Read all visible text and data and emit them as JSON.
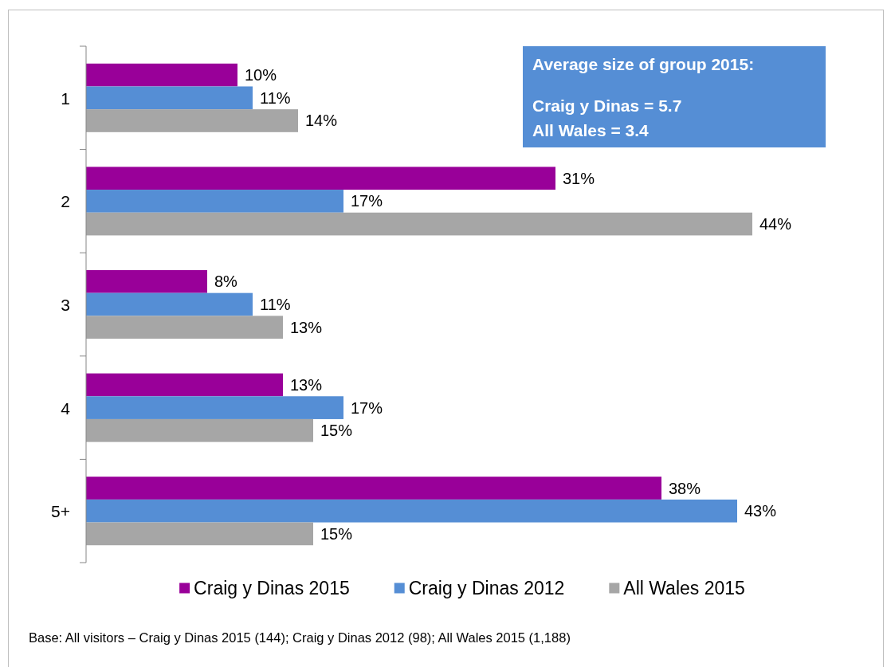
{
  "chart_data": {
    "type": "bar",
    "orientation": "horizontal",
    "categories": [
      "1",
      "2",
      "3",
      "4",
      "5+"
    ],
    "series": [
      {
        "name": "Craig y Dinas 2015",
        "color": "#990099",
        "values": [
          10,
          31,
          8,
          13,
          38
        ],
        "value_labels": [
          "10%",
          "31%",
          "8%",
          "13%",
          "38%"
        ]
      },
      {
        "name": "Craig y Dinas 2012",
        "color": "#558ed5",
        "values": [
          11,
          17,
          11,
          17,
          43
        ],
        "value_labels": [
          "11%",
          "17%",
          "11%",
          "17%",
          "43%"
        ]
      },
      {
        "name": "All Wales 2015",
        "color": "#a6a6a6",
        "values": [
          14,
          44,
          13,
          15,
          15
        ],
        "value_labels": [
          "14%",
          "44%",
          "13%",
          "15%",
          "15%"
        ]
      }
    ],
    "legend": "bottom",
    "annotations": [
      "Average size of group 2015:",
      "Craig y Dinas = 5.7",
      "All Wales = 3.4",
      "Base: All visitors – Craig y Dinas 2015 (144); Craig y Dinas 2012 (98); All Wales 2015 (1,188)"
    ]
  }
}
